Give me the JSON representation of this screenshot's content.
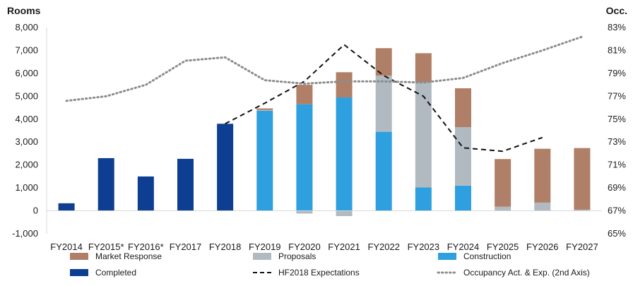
{
  "chart_data": {
    "type": "bar",
    "stacked": true,
    "y_left_label": "Rooms",
    "y_right_label": "Occ.",
    "categories": [
      "FY2014",
      "FY2015*",
      "FY2016*",
      "FY2017",
      "FY2018",
      "FY2019",
      "FY2020",
      "FY2021",
      "FY2022",
      "FY2023",
      "FY2024",
      "FY2025",
      "FY2026",
      "FY2027"
    ],
    "y_left": {
      "ylim": [
        -1000,
        8000
      ],
      "ticks": [
        -1000,
        0,
        1000,
        2000,
        3000,
        4000,
        5000,
        6000,
        7000,
        8000
      ],
      "tick_labels": [
        "-1,000",
        "0",
        "1,000",
        "2,000",
        "3,000",
        "4,000",
        "5,000",
        "6,000",
        "7,000",
        "8,000"
      ]
    },
    "y_right": {
      "ylim": [
        65,
        83
      ],
      "ticks": [
        65,
        67,
        69,
        71,
        73,
        75,
        77,
        79,
        81,
        83
      ],
      "tick_labels": [
        "65%",
        "67%",
        "69%",
        "71%",
        "73%",
        "75%",
        "77%",
        "79%",
        "81%",
        "83%"
      ]
    },
    "series": [
      {
        "name": "Completed",
        "kind": "bar",
        "color": "#0d3e91",
        "values": [
          330,
          2300,
          1500,
          2270,
          3800,
          0,
          0,
          0,
          0,
          0,
          0,
          0,
          0,
          0
        ]
      },
      {
        "name": "Construction",
        "kind": "bar",
        "color": "#2e9fdf",
        "values": [
          0,
          0,
          0,
          0,
          0,
          4370,
          4650,
          4950,
          3450,
          1020,
          1100,
          0,
          0,
          0
        ]
      },
      {
        "name": "Proposals",
        "kind": "bar",
        "color": "#b1bac1",
        "values": [
          0,
          0,
          0,
          0,
          0,
          30,
          -120,
          -230,
          2450,
          4600,
          2550,
          180,
          360,
          50
        ]
      },
      {
        "name": "Market Response",
        "kind": "bar",
        "color": "#b07f67",
        "values": [
          0,
          0,
          0,
          0,
          0,
          70,
          850,
          1100,
          1200,
          1260,
          1700,
          2080,
          2350,
          2690
        ]
      },
      {
        "name": "HF2018 Expectations",
        "kind": "line",
        "axis": "left",
        "color": "#111111",
        "dash": "dashed",
        "x": [
          "FY2018",
          "FY2019",
          "FY2020",
          "FY2021",
          "FY2022",
          "FY2023",
          "FY2024",
          "FY2025",
          "FY2026"
        ],
        "values": [
          3800,
          4700,
          5650,
          7250,
          5900,
          5000,
          2750,
          2600,
          3200
        ]
      },
      {
        "name": "Occupancy Act. & Exp. (2nd Axis)",
        "kind": "line",
        "axis": "right",
        "color": "#8c8c8c",
        "dash": "dotted",
        "x": [
          "FY2014",
          "FY2015*",
          "FY2016*",
          "FY2017",
          "FY2018",
          "FY2019",
          "FY2020",
          "FY2021",
          "FY2022",
          "FY2023",
          "FY2024",
          "FY2025",
          "FY2026",
          "FY2027"
        ],
        "values": [
          76.6,
          77.0,
          78.0,
          80.1,
          80.4,
          78.4,
          78.1,
          78.3,
          78.3,
          78.2,
          78.6,
          79.9,
          81.0,
          82.2
        ]
      }
    ],
    "legend": {
      "placement": "bottom",
      "entries": [
        {
          "label": "Market Response",
          "series": "Market Response",
          "marker": "box"
        },
        {
          "label": "Proposals",
          "series": "Proposals",
          "marker": "box"
        },
        {
          "label": "Construction",
          "series": "Construction",
          "marker": "box"
        },
        {
          "label": "Completed",
          "series": "Completed",
          "marker": "box"
        },
        {
          "label": "HF2018 Expectations",
          "series": "HF2018 Expectations",
          "marker": "dashed"
        },
        {
          "label": "Occupancy Act. & Exp. (2nd Axis)",
          "series": "Occupancy Act. & Exp. (2nd Axis)",
          "marker": "dotted"
        }
      ]
    },
    "grid": false
  }
}
